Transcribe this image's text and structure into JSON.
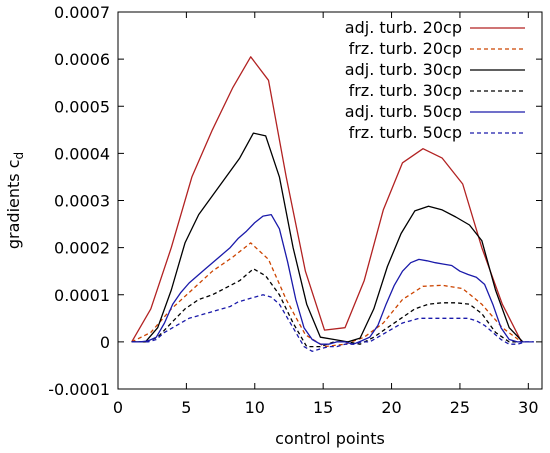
{
  "chart_data": {
    "type": "line",
    "xlabel": "control points",
    "ylabel": "gradients c",
    "ylabel_subscript": "d",
    "xlim": [
      0,
      31
    ],
    "ylim": [
      -0.0001,
      0.0007
    ],
    "xticks": [
      "0",
      "5",
      "10",
      "15",
      "20",
      "25",
      "30"
    ],
    "yticks": [
      "-0.0001",
      "0",
      "0.0001",
      "0.0002",
      "0.0003",
      "0.0004",
      "0.0005",
      "0.0006",
      "0.0007"
    ],
    "legend_position": "top-right",
    "grid": false,
    "series": [
      {
        "name": "adj. turb. 20cp",
        "color": "#b22222",
        "dash": "solid",
        "x": [
          1,
          2.4,
          3.9,
          5.4,
          6.9,
          8.4,
          9.7,
          11,
          12.3,
          13.7,
          15.1,
          16.6,
          18,
          19.4,
          20.8,
          22.3,
          23.7,
          25.2,
          26.6,
          28.1,
          29.5
        ],
        "y": [
          0,
          7e-05,
          0.0002,
          0.00035,
          0.00045,
          0.00054,
          0.000605,
          0.000555,
          0.00035,
          0.00015,
          2.5e-05,
          3e-05,
          0.00013,
          0.00028,
          0.00038,
          0.00041,
          0.00039,
          0.000335,
          0.0002,
          8e-05,
          0
        ]
      },
      {
        "name": "frz. turb. 20cp",
        "color": "#cc4400",
        "dash": "dashed",
        "x": [
          1,
          2.4,
          3.9,
          5.4,
          6.9,
          8.4,
          9.7,
          11,
          12.3,
          13.7,
          15.1,
          16.6,
          18,
          19.4,
          20.8,
          22.3,
          23.7,
          25.2,
          26.6,
          28.1,
          29.5
        ],
        "y": [
          0,
          2e-05,
          7e-05,
          0.00011,
          0.00015,
          0.00018,
          0.00021,
          0.000175,
          9e-05,
          1.5e-05,
          -1e-05,
          -5e-06,
          1e-05,
          4e-05,
          9e-05,
          0.000118,
          0.00012,
          0.000113,
          8e-05,
          3e-05,
          0
        ]
      },
      {
        "name": "adj. turb. 30cp",
        "color": "#000000",
        "dash": "solid",
        "x": [
          1,
          2,
          2.9,
          3.9,
          4.9,
          5.9,
          6.9,
          7.9,
          8.9,
          9.9,
          10.8,
          11.8,
          12.8,
          13.8,
          14.8,
          15.8,
          16.8,
          17.7,
          18.7,
          19.7,
          20.7,
          21.7,
          22.7,
          23.7,
          24.7,
          25.7,
          26.6,
          27.6,
          28.6,
          29.6
        ],
        "y": [
          0,
          0,
          3e-05,
          0.00011,
          0.00021,
          0.00027,
          0.00031,
          0.00035,
          0.00039,
          0.000443,
          0.000437,
          0.00035,
          0.0002,
          8e-05,
          1e-05,
          5e-06,
          0,
          8e-06,
          7e-05,
          0.00016,
          0.00023,
          0.000278,
          0.000288,
          0.00028,
          0.000265,
          0.000248,
          0.000215,
          0.00011,
          3e-05,
          0
        ]
      },
      {
        "name": "frz. turb. 30cp",
        "color": "#000000",
        "dash": "dashed",
        "x": [
          1,
          2,
          2.9,
          3.9,
          4.9,
          5.9,
          6.9,
          7.9,
          8.9,
          9.9,
          10.8,
          11.8,
          12.8,
          13.8,
          14.8,
          15.8,
          16.8,
          17.7,
          18.7,
          19.7,
          20.7,
          21.7,
          22.7,
          23.7,
          24.7,
          25.7,
          26.6,
          27.6,
          28.6,
          29.6
        ],
        "y": [
          0,
          0,
          1e-05,
          4e-05,
          7e-05,
          9e-05,
          0.0001,
          0.000115,
          0.00013,
          0.000155,
          0.00014,
          0.0001,
          4e-05,
          -1e-05,
          -1e-05,
          0,
          0,
          -5e-06,
          1e-05,
          3e-05,
          5e-05,
          7e-05,
          8e-05,
          8.3e-05,
          8.3e-05,
          8e-05,
          6e-05,
          2e-05,
          0,
          0
        ]
      },
      {
        "name": "adj. turb. 50cp",
        "color": "#1a1aaa",
        "dash": "solid",
        "x": [
          1,
          1.6,
          2.2,
          2.8,
          3.4,
          4,
          4.6,
          5.2,
          5.8,
          6.4,
          7,
          7.6,
          8.2,
          8.8,
          9.4,
          10,
          10.6,
          11.2,
          11.8,
          12.4,
          13,
          13.6,
          14.2,
          14.8,
          15.4,
          16,
          16.6,
          17.2,
          17.8,
          18.4,
          19,
          19.6,
          20.2,
          20.8,
          21.4,
          22,
          22.6,
          23.2,
          23.8,
          24.4,
          25,
          25.6,
          26.2,
          26.8,
          27.4,
          28,
          28.6,
          29.2,
          29.8,
          30.4
        ],
        "y": [
          0,
          0,
          2e-06,
          1e-05,
          4e-05,
          8e-05,
          0.000105,
          0.000125,
          0.00014,
          0.000155,
          0.00017,
          0.000185,
          0.0002,
          0.00022,
          0.000235,
          0.000253,
          0.000267,
          0.00027,
          0.00024,
          0.00017,
          9e-05,
          3e-05,
          5e-06,
          -5e-06,
          -5e-06,
          0,
          0,
          -5e-06,
          2e-06,
          1e-05,
          3.5e-05,
          8e-05,
          0.00012,
          0.00015,
          0.000168,
          0.000175,
          0.000172,
          0.000168,
          0.000165,
          0.000162,
          0.00015,
          0.000143,
          0.000137,
          0.000122,
          8e-05,
          3e-05,
          5e-06,
          0,
          0,
          0
        ]
      },
      {
        "name": "frz. turb. 50cp",
        "color": "#1a1aaa",
        "dash": "dashed",
        "x": [
          1,
          1.6,
          2.2,
          2.8,
          3.4,
          4,
          4.6,
          5.2,
          5.8,
          6.4,
          7,
          7.6,
          8.2,
          8.8,
          9.4,
          10,
          10.6,
          11.2,
          11.8,
          12.4,
          13,
          13.6,
          14.2,
          14.8,
          15.4,
          16,
          16.6,
          17.2,
          17.8,
          18.4,
          19,
          19.6,
          20.2,
          20.8,
          21.4,
          22,
          22.6,
          23.2,
          23.8,
          24.4,
          25,
          25.6,
          26.2,
          26.8,
          27.4,
          28,
          28.6,
          29.2,
          29.8,
          30.4
        ],
        "y": [
          0,
          0,
          0,
          5e-06,
          2e-05,
          3e-05,
          4e-05,
          5e-05,
          5.5e-05,
          6e-05,
          6.5e-05,
          7e-05,
          7.5e-05,
          8.5e-05,
          9e-05,
          9.5e-05,
          0.0001,
          9.5e-05,
          8e-05,
          5e-05,
          2e-05,
          -1e-05,
          -2e-05,
          -1.5e-05,
          -1e-05,
          -1e-05,
          -5e-06,
          -5e-06,
          0,
          0,
          1e-05,
          2e-05,
          3e-05,
          4e-05,
          4.5e-05,
          5e-05,
          5e-05,
          5e-05,
          5e-05,
          5e-05,
          5e-05,
          5e-05,
          4.5e-05,
          3.5e-05,
          2e-05,
          5e-06,
          -5e-06,
          -5e-06,
          0,
          0
        ]
      }
    ]
  }
}
